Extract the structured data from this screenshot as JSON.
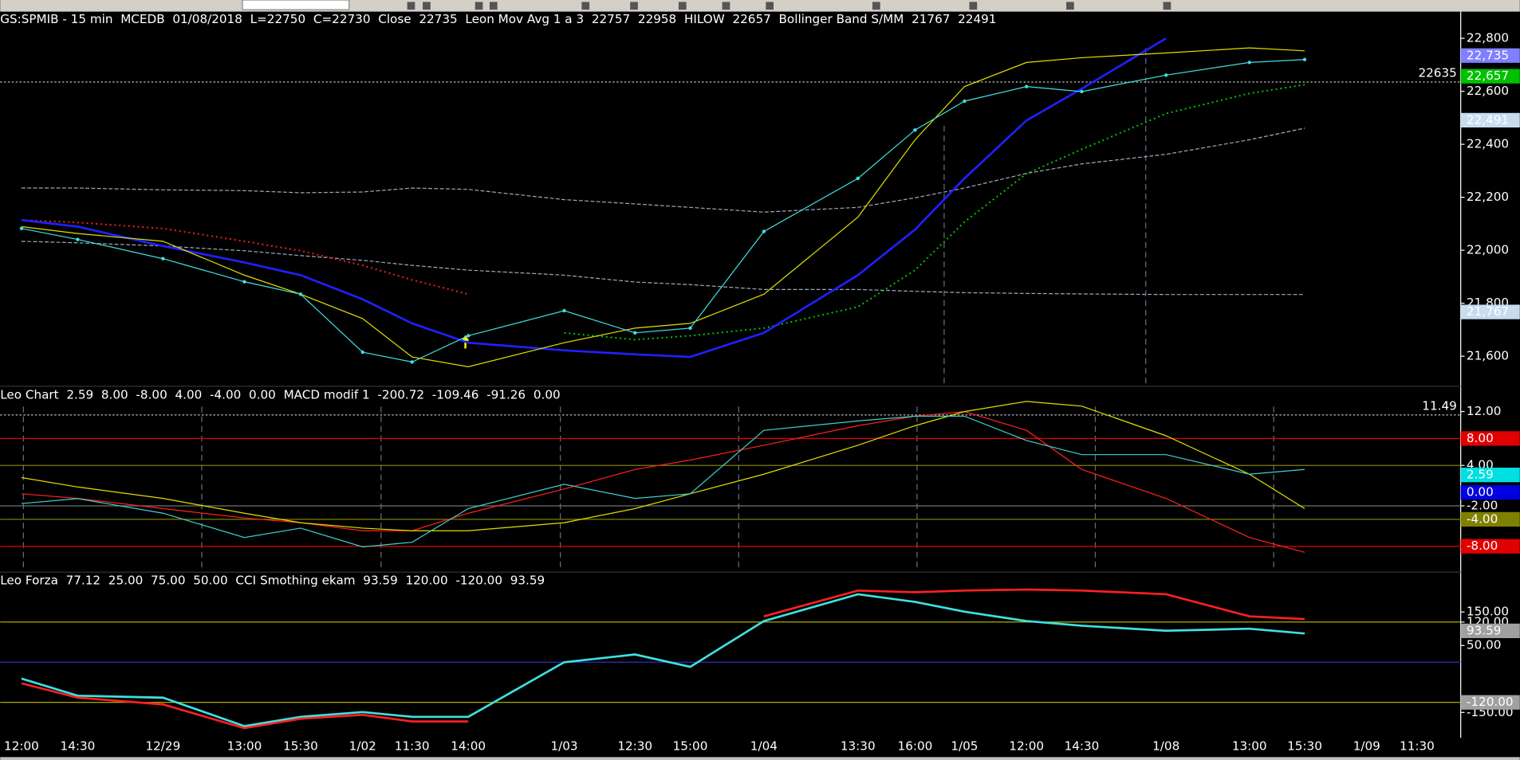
{
  "chart_data": [
    {
      "type": "line",
      "header": [
        {
          "text": "GS:SPMIB - 15 min",
          "color": "#6b6bff"
        },
        {
          "text": "MCEDB",
          "color": "#6b6bff"
        },
        {
          "text": "01/08/2018",
          "color": "#ffffff"
        },
        {
          "text": "L=22750",
          "color": "#00ff00"
        },
        {
          "text": "C=22730",
          "color": "#00ff00"
        },
        {
          "text": "Close",
          "color": "#ffffff"
        },
        {
          "text": "22735",
          "color": "#40e0e0"
        },
        {
          "text": "Leon Mov Avg 1 a 3",
          "color": "#ffffff"
        },
        {
          "text": "22757",
          "color": "#e0e000"
        },
        {
          "text": "22958",
          "color": "#3030ff"
        },
        {
          "text": "HILOW",
          "color": "#ffffff"
        },
        {
          "text": "22657",
          "color": "#00e000"
        },
        {
          "text": "Bollinger Band S/MM",
          "color": "#ffffff"
        },
        {
          "text": "21767",
          "color": "#b0d0f0"
        },
        {
          "text": "22491",
          "color": "#b0d0f0"
        }
      ],
      "categories": [
        "12:00",
        "14:30",
        "12/29",
        "13:00",
        "15:30",
        "1/02",
        "11:30",
        "14:00",
        "1/03",
        "12:30",
        "15:00",
        "1/04",
        "13:30",
        "16:00",
        "1/05",
        "12:00",
        "14:30",
        "1/08",
        "13:00",
        "15:30",
        "1/09",
        "11:30"
      ],
      "series": [
        {
          "color": "#a0a8c0",
          "style": "dashed",
          "values": [
            22235,
            22235,
            22228,
            22225,
            22217,
            22220,
            22235,
            22230,
            22191,
            22175,
            22162,
            22144,
            22162,
            22198,
            22235,
            22290,
            22326,
            22362,
            22417,
            22461,
            null,
            null
          ]
        },
        {
          "color": "#a0a8c0",
          "style": "dashed",
          "values": [
            22034,
            22028,
            22016,
            21998,
            21980,
            21962,
            21943,
            21925,
            21906,
            21880,
            21870,
            21852,
            21852,
            21845,
            21840,
            21837,
            21835,
            21833,
            21833,
            21833,
            null,
            null
          ]
        },
        {
          "color": "#ff2020",
          "style": "dotted",
          "values": [
            22114,
            22105,
            22082,
            22034,
            21998,
            21943,
            21888,
            21834,
            null,
            null,
            null,
            null,
            null,
            null,
            null,
            null,
            null,
            null,
            null,
            null,
            null,
            null
          ]
        },
        {
          "color": "#00d000",
          "style": "dotted",
          "values": [
            null,
            null,
            null,
            null,
            null,
            null,
            null,
            null,
            21688,
            21662,
            21677,
            21706,
            21786,
            21925,
            22107,
            22289,
            22381,
            22516,
            22592,
            22625,
            null,
            null
          ]
        },
        {
          "color": "#2020ff",
          "style": "thick",
          "values": [
            22114,
            22089,
            22016,
            21954,
            21906,
            21815,
            21724,
            21651,
            21622,
            21607,
            21597,
            21688,
            21906,
            22078,
            22271,
            22490,
            22610,
            22800,
            null,
            null,
            null,
            null
          ]
        },
        {
          "color": "#e0e000",
          "style": "solid",
          "values": [
            22089,
            22063,
            22034,
            21906,
            21834,
            21742,
            21597,
            21560,
            21651,
            21706,
            21724,
            21834,
            22125,
            22417,
            22618,
            22709,
            22727,
            22745,
            22764,
            22753,
            null,
            null
          ]
        },
        {
          "color": "#40e0e0",
          "style": "markers",
          "values": [
            22082,
            22041,
            21968,
            21881,
            21834,
            21615,
            21578,
            21677,
            21772,
            21688,
            21706,
            22071,
            22271,
            22454,
            22563,
            22618,
            22599,
            22661,
            22709,
            22720,
            null,
            null
          ]
        }
      ],
      "ylim": [
        21490,
        22890
      ],
      "yticks": [
        {
          "value": 21600,
          "label": "21,600"
        },
        {
          "value": 21800,
          "label": "21,800"
        },
        {
          "value": 22000,
          "label": "22,000"
        },
        {
          "value": 22200,
          "label": "22,200"
        },
        {
          "value": 22400,
          "label": "22,400"
        },
        {
          "value": 22600,
          "label": "22,600"
        },
        {
          "value": 22800,
          "label": "22,800"
        }
      ],
      "reference_line": 22635,
      "badges": [
        {
          "value": 22735,
          "label": "22,735",
          "color": "#8080ff"
        },
        {
          "value": 22657,
          "label": "22,657",
          "color": "#00c000"
        },
        {
          "value": 22491,
          "label": "22,491",
          "color": "#c8dcf0"
        },
        {
          "value": 21767,
          "label": "21,767",
          "color": "#c8dcf0"
        }
      ]
    },
    {
      "type": "line",
      "header": [
        {
          "text": "Leo Chart",
          "color": "#ffffff"
        },
        {
          "text": "2.59",
          "color": "#40e0e0"
        },
        {
          "text": "8.00",
          "color": "#ff2020"
        },
        {
          "text": "-8.00",
          "color": "#ff2020"
        },
        {
          "text": "4.00",
          "color": "#a0a000"
        },
        {
          "text": "-4.00",
          "color": "#a0a000"
        },
        {
          "text": "0.00",
          "color": "#3030ff"
        },
        {
          "text": "MACD modif 1",
          "color": "#ffffff"
        },
        {
          "text": "-200.72",
          "color": "#ff2020"
        },
        {
          "text": "-109.46",
          "color": "#e0e000"
        },
        {
          "text": "-91.26",
          "color": "#808080"
        },
        {
          "text": "0.00",
          "color": "#e0e000"
        }
      ],
      "series": [
        {
          "color": "#ff2020",
          "style": "solid",
          "values": [
            -0.2,
            -0.9,
            -2.4,
            -3.8,
            -4.5,
            -5.7,
            -5.7,
            -3.1,
            0.5,
            3.4,
            4.8,
            7.0,
            9.9,
            11.3,
            12.0,
            9.2,
            3.4,
            -0.9,
            -6.7,
            -8.9,
            null,
            null
          ]
        },
        {
          "color": "#e0e000",
          "style": "solid",
          "values": [
            2.2,
            0.8,
            -0.9,
            -3.1,
            -4.5,
            -5.3,
            -5.7,
            -5.7,
            -4.5,
            -2.4,
            -0.2,
            2.7,
            7.0,
            9.9,
            12.0,
            13.5,
            12.8,
            8.4,
            2.7,
            -2.4,
            null,
            null
          ]
        },
        {
          "color": "#40d0d0",
          "style": "solid",
          "values": [
            -1.65,
            -0.93,
            -3.1,
            -6.7,
            -5.3,
            -8.1,
            -7.4,
            -2.4,
            1.2,
            -0.9,
            -0.2,
            9.2,
            10.6,
            11.3,
            11.3,
            7.7,
            5.6,
            5.6,
            2.7,
            3.4,
            null,
            null
          ]
        }
      ],
      "ylim": [
        -11.7,
        15.6
      ],
      "yticks": [
        {
          "value": 12,
          "label": "12.00"
        },
        {
          "value": 4,
          "label": "4.00"
        },
        {
          "value": -2,
          "label": "-2.00"
        }
      ],
      "levels": [
        {
          "value": 8,
          "color": "#e00000"
        },
        {
          "value": -8,
          "color": "#e00000"
        },
        {
          "value": 4,
          "color": "#808000"
        },
        {
          "value": -4,
          "color": "#808000"
        },
        {
          "value": -2,
          "color": "#707070"
        }
      ],
      "reference_line": 11.49,
      "badges": [
        {
          "value": 8,
          "label": "8.00",
          "color": "#e00000"
        },
        {
          "value": 2.59,
          "label": "2.59",
          "color": "#00e0e0"
        },
        {
          "value": 0,
          "label": "0.00",
          "color": "#0000e0"
        },
        {
          "value": -4,
          "label": "-4.00",
          "color": "#808000"
        },
        {
          "value": -8,
          "label": "-8.00",
          "color": "#e00000"
        }
      ]
    },
    {
      "type": "line",
      "header": [
        {
          "text": "Leo Forza",
          "color": "#ffffff"
        },
        {
          "text": "77.12",
          "color": "#ff2020"
        },
        {
          "text": "25.00",
          "color": "#e0e000"
        },
        {
          "text": "75.00",
          "color": "#e0e000"
        },
        {
          "text": "50.00",
          "color": "#3030ff"
        },
        {
          "text": "CCI Smothing ekam",
          "color": "#ffffff"
        },
        {
          "text": "93.59",
          "color": "#a0a0a0"
        },
        {
          "text": "120.00",
          "color": "#a0a0a0"
        },
        {
          "text": "-120.00",
          "color": "#a0a0a0"
        },
        {
          "text": "93.59",
          "color": "#a0a0a0"
        }
      ],
      "series": [
        {
          "color": "#40e0e0",
          "style": "thick",
          "values": [
            -49,
            -100,
            -106,
            -191,
            -163,
            -149,
            -163,
            -163,
            0,
            23,
            -14,
            123,
            203,
            180,
            151,
            123,
            109,
            94,
            100,
            86,
            null,
            null
          ]
        },
        {
          "color": "#ff2020",
          "style": "thick",
          "values": [
            -63,
            -106,
            -126,
            -197,
            -169,
            -157,
            -177,
            -177,
            null,
            null,
            null,
            137,
            214,
            209,
            214,
            217,
            214,
            203,
            137,
            129,
            null,
            null
          ]
        }
      ],
      "ylim": [
        -214,
        266
      ],
      "yticks": [
        {
          "value": 150,
          "label": "150.00"
        },
        {
          "value": 120,
          "label": "120.00"
        },
        {
          "value": 50,
          "label": "50.00"
        },
        {
          "value": -150,
          "label": "-150.00"
        }
      ],
      "levels": [
        {
          "value": 120,
          "color": "#c0c000"
        },
        {
          "value": -120,
          "color": "#c0c000"
        },
        {
          "value": 0,
          "color": "#3030c0"
        }
      ],
      "badges": [
        {
          "value": 93.59,
          "label": "93.59",
          "color": "#a0a0a0"
        },
        {
          "value": -120,
          "label": "-120.00",
          "color": "#a0a0a0"
        }
      ]
    }
  ]
}
